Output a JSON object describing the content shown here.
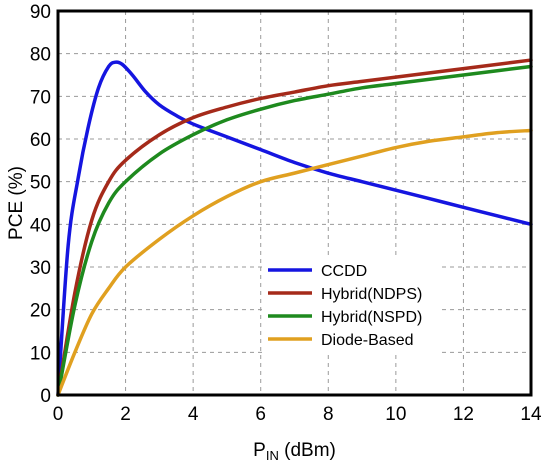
{
  "chart_data": {
    "type": "line",
    "xlabel": {
      "main": "P",
      "sub": "IN",
      "suffix": " (dBm)"
    },
    "ylabel": "PCE (%)",
    "xlim": [
      0,
      14
    ],
    "ylim": [
      0,
      90
    ],
    "xticks": [
      0,
      2,
      4,
      6,
      8,
      10,
      12,
      14
    ],
    "yticks": [
      0,
      10,
      20,
      30,
      40,
      50,
      60,
      70,
      80,
      90
    ],
    "grid": true,
    "legend_position": "bottom-right",
    "series": [
      {
        "name": "CCDD",
        "color": "#1515e0",
        "x": [
          0,
          0.3,
          0.6,
          0.9,
          1.2,
          1.5,
          1.7,
          1.9,
          2.2,
          2.6,
          3.0,
          3.5,
          4.0,
          5.0,
          6.0,
          7.0,
          8.0,
          9.0,
          10.0,
          11.0,
          12.0,
          13.0,
          14.0
        ],
        "y": [
          0,
          35,
          51,
          63,
          72,
          77,
          78,
          77.5,
          75,
          71,
          68,
          65.5,
          63.5,
          60.5,
          57.5,
          54.5,
          52,
          50,
          48,
          46,
          44,
          42,
          40
        ]
      },
      {
        "name": "Hybrid(NDPS)",
        "color": "#a52a1a",
        "x": [
          0,
          0.5,
          1.0,
          1.5,
          2.0,
          3.0,
          4.0,
          5.0,
          6.0,
          7.0,
          8.0,
          9.0,
          10.0,
          11.0,
          12.0,
          13.0,
          14.0
        ],
        "y": [
          0,
          24,
          41,
          50,
          55,
          61,
          65,
          67.5,
          69.5,
          71,
          72.5,
          73.5,
          74.5,
          75.5,
          76.5,
          77.5,
          78.5
        ]
      },
      {
        "name": "Hybrid(NSPD)",
        "color": "#1e8a1e",
        "x": [
          0,
          0.5,
          1.0,
          1.5,
          2.0,
          3.0,
          4.0,
          5.0,
          6.0,
          7.0,
          8.0,
          9.0,
          10.0,
          11.0,
          12.0,
          13.0,
          14.0
        ],
        "y": [
          0,
          21,
          36,
          45,
          50,
          56.5,
          61,
          64.5,
          67,
          69,
          70.5,
          72,
          73,
          74,
          75,
          76,
          77
        ]
      },
      {
        "name": "Diode-Based",
        "color": "#e0a020",
        "x": [
          0,
          0.5,
          1.0,
          1.5,
          2.0,
          3.0,
          4.0,
          5.0,
          6.0,
          7.0,
          8.0,
          9.0,
          10.0,
          11.0,
          12.0,
          13.0,
          14.0
        ],
        "y": [
          0,
          10,
          19,
          25,
          30,
          36.5,
          42,
          46.5,
          50,
          52,
          54,
          56,
          58,
          59.5,
          60.5,
          61.5,
          62
        ]
      }
    ]
  }
}
